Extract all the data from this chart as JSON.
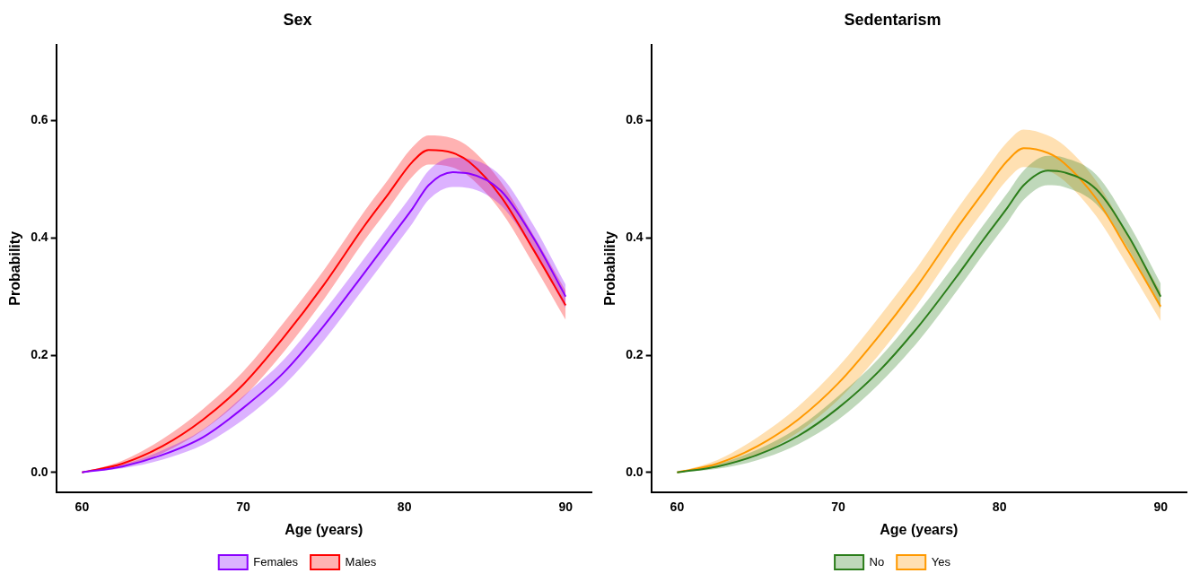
{
  "chart_data": [
    {
      "type": "line",
      "title": "Sex",
      "xlabel": "Age (years)",
      "ylabel": "Probability",
      "x": [
        60,
        62.5,
        65,
        67.5,
        70,
        72.5,
        75,
        77.5,
        79,
        80.5,
        81.5,
        83,
        84,
        86,
        88,
        90
      ],
      "xlim": [
        58.4,
        91.6
      ],
      "xticks": [
        60,
        70,
        80,
        90
      ],
      "ylim": [
        -0.034,
        0.73
      ],
      "yticks": [
        {
          "value": 0,
          "label": "0.0"
        },
        {
          "value": 0.2,
          "label": "0.2"
        },
        {
          "value": 0.4,
          "label": "0.4"
        },
        {
          "value": 0.6,
          "label": "0.6"
        }
      ],
      "legend": "bottom",
      "marker": "none",
      "series": [
        {
          "name": "Females",
          "color": "#8b00ff",
          "values": [
            0,
            0.01,
            0.03,
            0.06,
            0.11,
            0.17,
            0.25,
            0.34,
            0.395,
            0.45,
            0.49,
            0.512,
            0.51,
            0.48,
            0.4,
            0.3
          ],
          "lower": [
            0,
            0.007,
            0.022,
            0.047,
            0.09,
            0.148,
            0.225,
            0.315,
            0.37,
            0.425,
            0.465,
            0.487,
            0.485,
            0.455,
            0.378,
            0.28
          ],
          "upper": [
            0,
            0.013,
            0.038,
            0.073,
            0.13,
            0.192,
            0.275,
            0.365,
            0.42,
            0.475,
            0.515,
            0.537,
            0.535,
            0.505,
            0.422,
            0.32
          ]
        },
        {
          "name": "Males",
          "color": "#ff0000",
          "values": [
            0,
            0.015,
            0.045,
            0.09,
            0.15,
            0.23,
            0.32,
            0.42,
            0.475,
            0.53,
            0.55,
            0.545,
            0.53,
            0.47,
            0.38,
            0.285
          ],
          "lower": [
            0,
            0.01,
            0.033,
            0.072,
            0.128,
            0.205,
            0.295,
            0.395,
            0.45,
            0.505,
            0.525,
            0.52,
            0.505,
            0.445,
            0.355,
            0.26
          ],
          "upper": [
            0,
            0.02,
            0.057,
            0.108,
            0.172,
            0.255,
            0.345,
            0.445,
            0.5,
            0.555,
            0.575,
            0.57,
            0.555,
            0.495,
            0.405,
            0.31
          ]
        }
      ]
    },
    {
      "type": "line",
      "title": "Sedentarism",
      "xlabel": "Age (years)",
      "ylabel": "Probability",
      "x": [
        60,
        62.5,
        65,
        67.5,
        70,
        72.5,
        75,
        77.5,
        79,
        80.5,
        81.5,
        83,
        84,
        86,
        88,
        90
      ],
      "xlim": [
        58.4,
        91.6
      ],
      "xticks": [
        60,
        70,
        80,
        90
      ],
      "ylim": [
        -0.034,
        0.73
      ],
      "yticks": [
        {
          "value": 0,
          "label": "0.0"
        },
        {
          "value": 0.2,
          "label": "0.2"
        },
        {
          "value": 0.4,
          "label": "0.4"
        },
        {
          "value": 0.6,
          "label": "0.6"
        }
      ],
      "legend": "bottom",
      "marker": "none",
      "series": [
        {
          "name": "No",
          "color": "#2b7d1a",
          "values": [
            0,
            0.01,
            0.03,
            0.062,
            0.11,
            0.172,
            0.25,
            0.34,
            0.397,
            0.452,
            0.49,
            0.515,
            0.512,
            0.483,
            0.403,
            0.3
          ],
          "lower": [
            0,
            0.006,
            0.021,
            0.048,
            0.09,
            0.15,
            0.225,
            0.315,
            0.372,
            0.427,
            0.465,
            0.49,
            0.487,
            0.458,
            0.381,
            0.278
          ],
          "upper": [
            0,
            0.014,
            0.039,
            0.076,
            0.13,
            0.194,
            0.275,
            0.365,
            0.422,
            0.477,
            0.515,
            0.54,
            0.537,
            0.508,
            0.425,
            0.322
          ]
        },
        {
          "name": "Yes",
          "color": "#ff9900",
          "values": [
            0,
            0.015,
            0.045,
            0.09,
            0.152,
            0.232,
            0.322,
            0.422,
            0.478,
            0.532,
            0.553,
            0.545,
            0.528,
            0.467,
            0.377,
            0.283
          ],
          "lower": [
            0,
            0.009,
            0.03,
            0.068,
            0.124,
            0.2,
            0.29,
            0.39,
            0.446,
            0.5,
            0.521,
            0.515,
            0.498,
            0.437,
            0.35,
            0.258
          ],
          "upper": [
            0,
            0.021,
            0.06,
            0.112,
            0.18,
            0.264,
            0.354,
            0.454,
            0.51,
            0.564,
            0.585,
            0.575,
            0.558,
            0.497,
            0.404,
            0.308
          ]
        }
      ]
    }
  ]
}
